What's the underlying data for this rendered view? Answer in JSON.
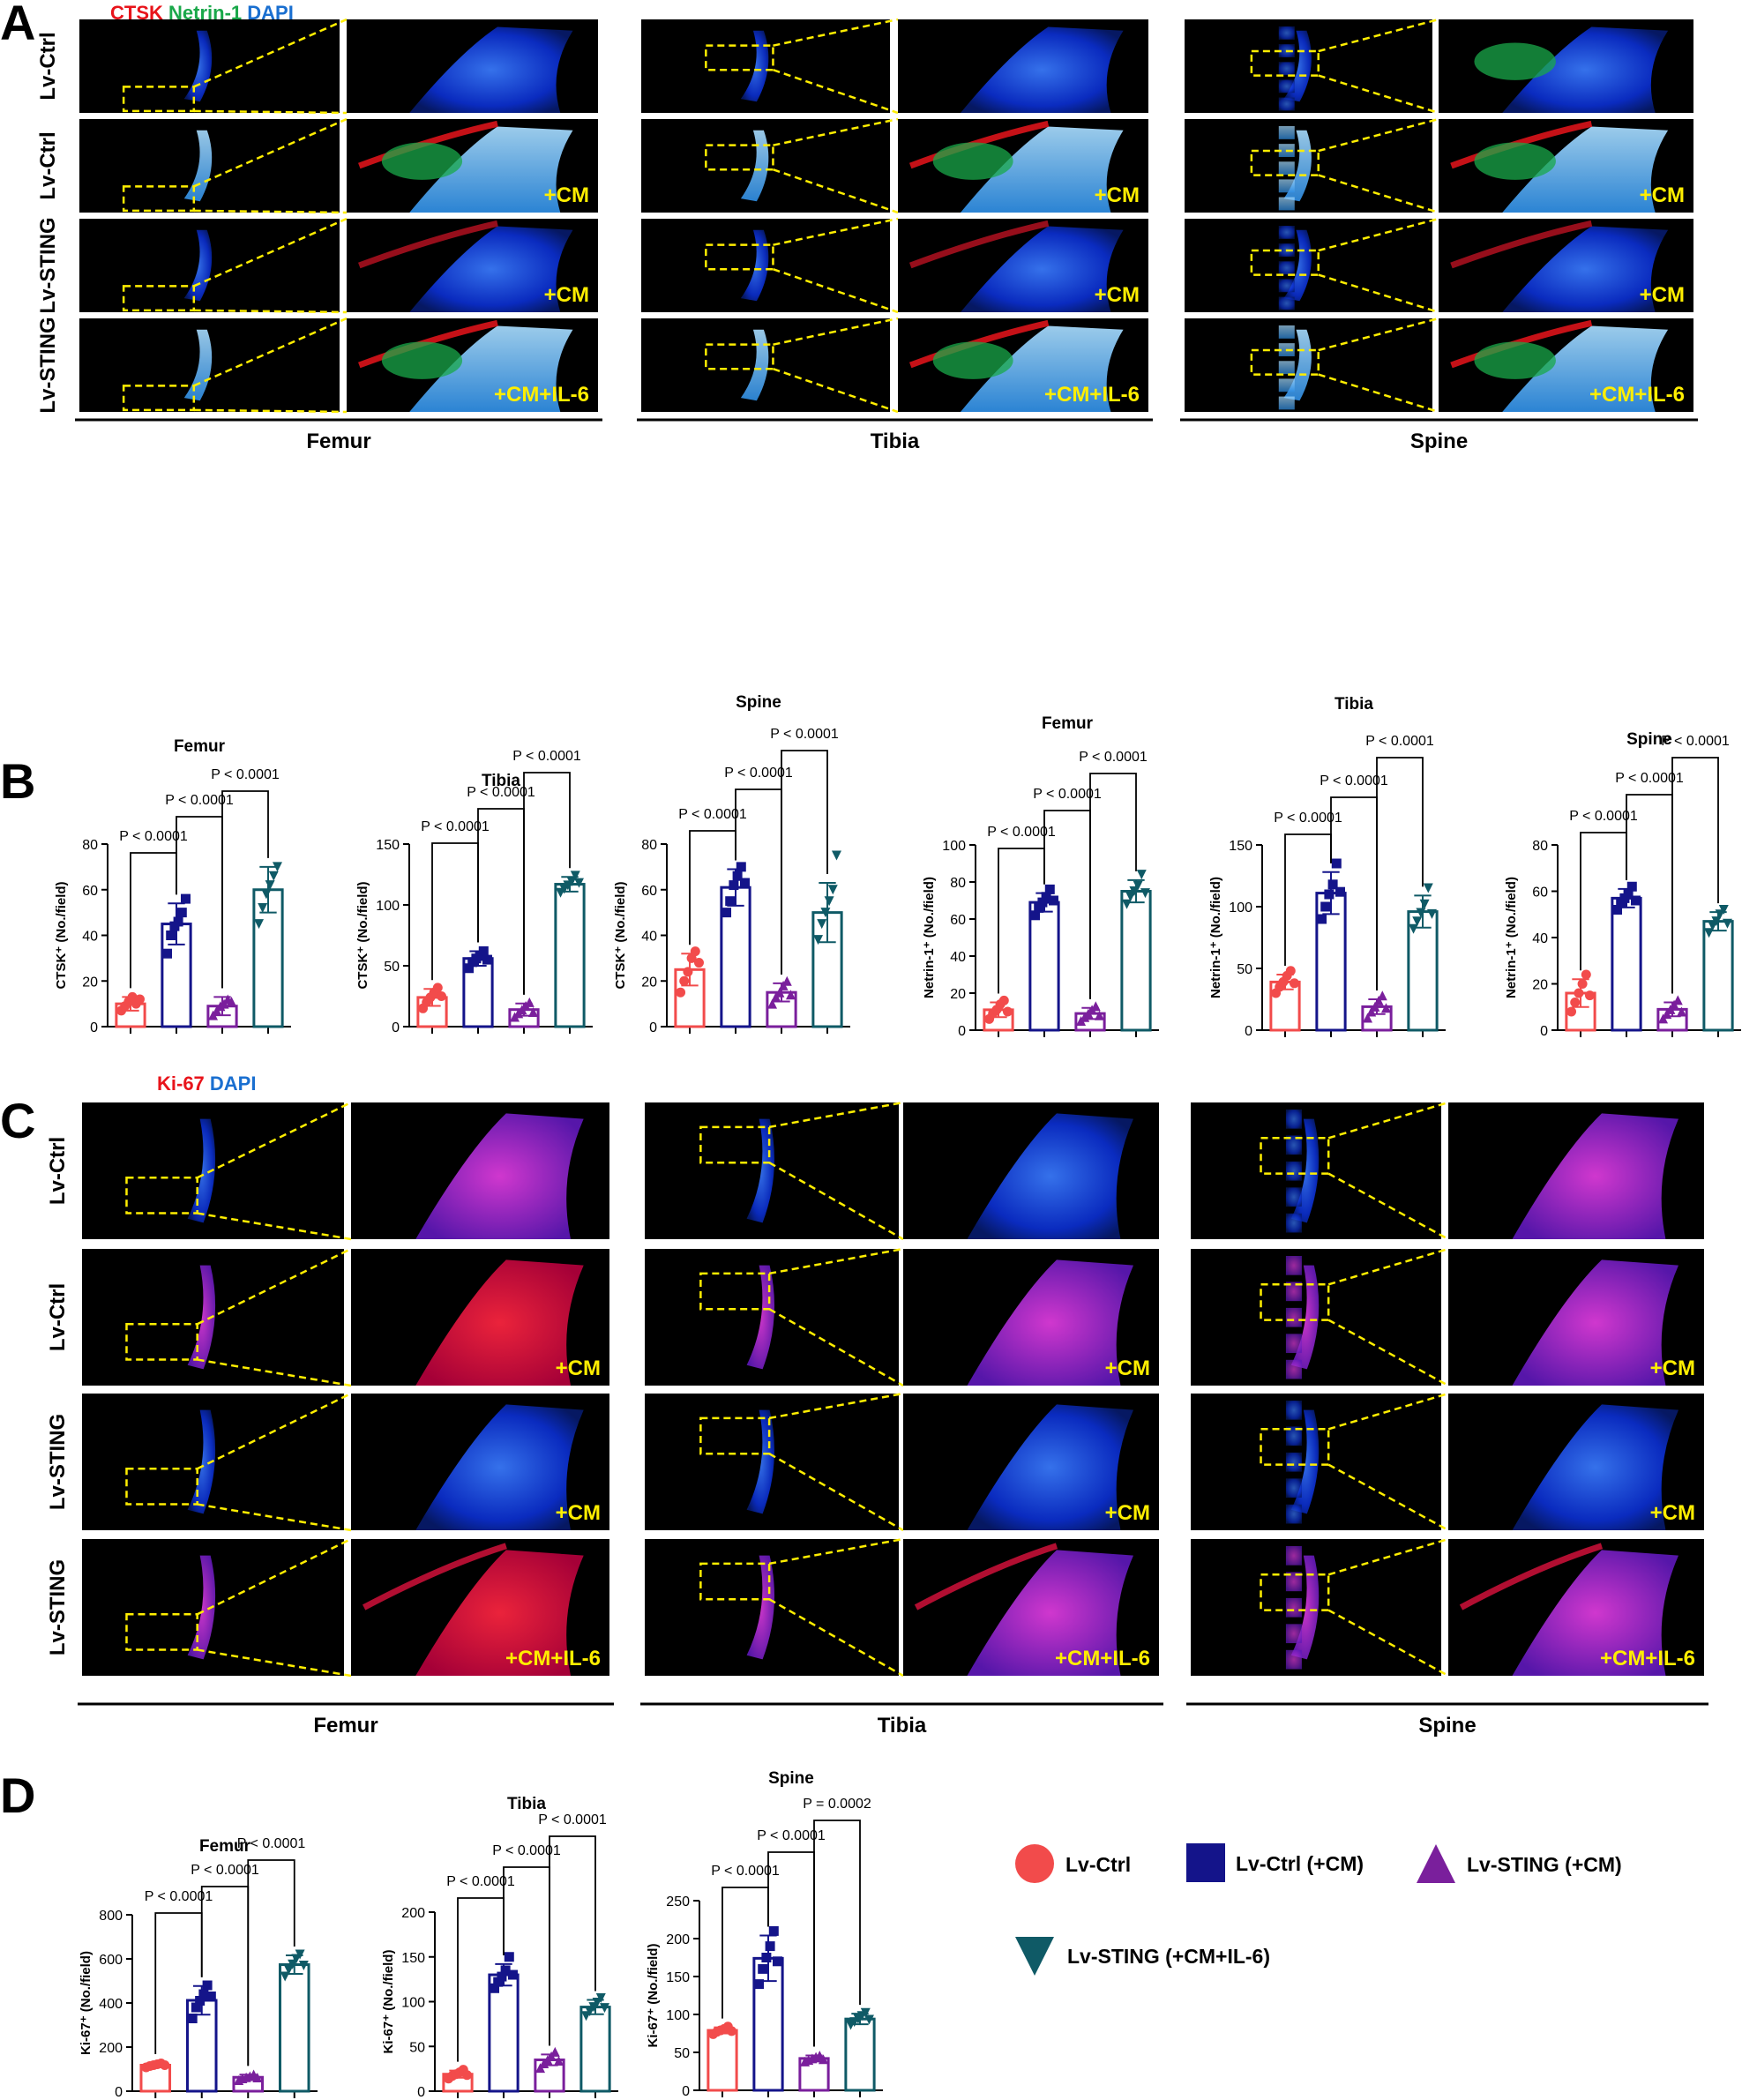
{
  "panel_letters": [
    "A",
    "B",
    "C",
    "D"
  ],
  "panel_a": {
    "stain": [
      {
        "text": "CTSK",
        "color": "#e8141b"
      },
      {
        "text": " Netrin-1",
        "color": "#1aa84a"
      },
      {
        "text": " DAPI",
        "color": "#1a6fd0"
      }
    ],
    "tissues": [
      "Femur",
      "Tibia",
      "Spine"
    ],
    "rows": [
      "Lv-Ctrl",
      "Lv-Ctrl",
      "Lv-STING",
      "Lv-STING"
    ],
    "treatments": [
      "",
      "+CM",
      "+CM",
      "+CM+IL-6"
    ]
  },
  "panel_c": {
    "stain": [
      {
        "text": "Ki-67",
        "color": "#e8141b"
      },
      {
        "text": " DAPI",
        "color": "#1a6fd0"
      }
    ],
    "tissues": [
      "Femur",
      "Tibia",
      "Spine"
    ],
    "rows": [
      "Lv-Ctrl",
      "Lv-Ctrl",
      "Lv-STING",
      "Lv-STING"
    ],
    "treatments": [
      "",
      "+CM",
      "+CM",
      "+CM+IL-6"
    ]
  },
  "legend": [
    {
      "label": "Lv-Ctrl",
      "shape": "circle",
      "color": "#f24b4b"
    },
    {
      "label": "Lv-Ctrl (+CM)",
      "shape": "square",
      "color": "#14148a"
    },
    {
      "label": "Lv-STING (+CM)",
      "shape": "triangle",
      "color": "#7a1f9c"
    },
    {
      "label": "Lv-STING (+CM+IL-6)",
      "shape": "triangle-down",
      "color": "#0f5a66"
    }
  ],
  "chart_data": [
    {
      "type": "bar",
      "title": "Femur",
      "ylabel": "CTSK⁺ (No./field)",
      "ylim": [
        0,
        80
      ],
      "ticks": [
        0,
        20,
        40,
        60,
        80
      ],
      "values": [
        10,
        45,
        9,
        60
      ],
      "errors": [
        3,
        9,
        4,
        10
      ],
      "points": [
        [
          7,
          9,
          11,
          13,
          10,
          12
        ],
        [
          32,
          40,
          44,
          46,
          50,
          56
        ],
        [
          5,
          7,
          9,
          10,
          12,
          11
        ],
        [
          45,
          52,
          58,
          62,
          66,
          70
        ]
      ],
      "pvalues": [
        "P < 0.0001",
        "P < 0.0001",
        "P < 0.0001"
      ]
    },
    {
      "type": "bar",
      "title": "Tibia",
      "ylabel": "CTSK⁺ (No./field)",
      "ylim": [
        0,
        150
      ],
      "ticks": [
        0,
        50,
        100,
        150
      ],
      "values": [
        24,
        56,
        14,
        117
      ],
      "errors": [
        7,
        6,
        5,
        6
      ],
      "points": [
        [
          15,
          20,
          24,
          28,
          32,
          25
        ],
        [
          48,
          53,
          56,
          58,
          62,
          55
        ],
        [
          8,
          11,
          14,
          17,
          20,
          12
        ],
        [
          110,
          113,
          116,
          119,
          124,
          118
        ]
      ],
      "pvalues": [
        "P < 0.0001",
        "P < 0.0001",
        "P < 0.0001"
      ]
    },
    {
      "type": "bar",
      "title": "Spine",
      "ylabel": "CTSK⁺ (No./field)",
      "ylim": [
        0,
        80
      ],
      "ticks": [
        0,
        20,
        40,
        60,
        80
      ],
      "values": [
        25,
        61,
        15,
        50
      ],
      "errors": [
        7,
        8,
        4,
        13
      ],
      "points": [
        [
          15,
          20,
          24,
          30,
          33,
          28
        ],
        [
          50,
          55,
          62,
          66,
          70,
          63
        ],
        [
          10,
          13,
          15,
          18,
          20,
          14
        ],
        [
          38,
          45,
          50,
          55,
          60,
          75
        ]
      ],
      "pvalues": [
        "P < 0.0001",
        "P < 0.0001",
        "P < 0.0001"
      ]
    },
    {
      "type": "bar",
      "title": "Femur",
      "ylabel": "Netrin-1⁺ (No./field)",
      "ylim": [
        0,
        100
      ],
      "ticks": [
        0,
        20,
        40,
        60,
        80,
        100
      ],
      "values": [
        11,
        69,
        9,
        75
      ],
      "errors": [
        4,
        5,
        3,
        6
      ],
      "points": [
        [
          6,
          9,
          11,
          14,
          16,
          10
        ],
        [
          62,
          66,
          69,
          72,
          76,
          70
        ],
        [
          5,
          7,
          9,
          11,
          13,
          8
        ],
        [
          68,
          72,
          75,
          78,
          84,
          74
        ]
      ],
      "pvalues": [
        "P < 0.0001",
        "P < 0.0001",
        "P < 0.0001"
      ]
    },
    {
      "type": "bar",
      "title": "Tibia",
      "ylabel": "Netrin-1⁺ (No./field)",
      "ylim": [
        0,
        150
      ],
      "ticks": [
        0,
        50,
        100,
        150
      ],
      "values": [
        39,
        111,
        19,
        96
      ],
      "errors": [
        6,
        17,
        6,
        13
      ],
      "points": [
        [
          30,
          35,
          39,
          44,
          48,
          38
        ],
        [
          90,
          100,
          110,
          118,
          135,
          112
        ],
        [
          10,
          15,
          19,
          24,
          28,
          18
        ],
        [
          82,
          88,
          95,
          102,
          115,
          94
        ]
      ],
      "pvalues": [
        "P < 0.0001",
        "P < 0.0001",
        "P < 0.0001"
      ]
    },
    {
      "type": "bar",
      "title": "Spine",
      "ylabel": "Netrin-1⁺ (No./field)",
      "ylim": [
        0,
        80
      ],
      "ticks": [
        0,
        20,
        40,
        60,
        80
      ],
      "values": [
        16,
        57,
        9,
        47
      ],
      "errors": [
        6,
        4,
        3,
        4
      ],
      "points": [
        [
          8,
          12,
          16,
          20,
          24,
          15
        ],
        [
          52,
          55,
          57,
          59,
          62,
          56
        ],
        [
          5,
          7,
          9,
          11,
          13,
          8
        ],
        [
          42,
          45,
          47,
          50,
          52,
          46
        ]
      ],
      "pvalues": [
        "P < 0.0001",
        "P < 0.0001",
        "P < 0.0001"
      ]
    },
    {
      "type": "bar",
      "title": "Femur",
      "ylabel": "Ki-67⁺ (No./field)",
      "ylim": [
        0,
        800
      ],
      "ticks": [
        0,
        200,
        400,
        600,
        800
      ],
      "values": [
        118,
        412,
        63,
        574
      ],
      "errors": [
        10,
        65,
        12,
        42
      ],
      "points": [
        [
          108,
          114,
          118,
          122,
          126,
          118
        ],
        [
          330,
          380,
          410,
          440,
          480,
          430
        ],
        [
          50,
          58,
          63,
          68,
          76,
          62
        ],
        [
          520,
          550,
          575,
          600,
          620,
          570
        ]
      ],
      "pvalues": [
        "P < 0.0001",
        "P < 0.0001",
        "P < 0.0001"
      ]
    },
    {
      "type": "bar",
      "title": "Tibia",
      "ylabel": "Ki-67⁺ (No./field)",
      "ylim": [
        0,
        200
      ],
      "ticks": [
        0,
        50,
        100,
        150,
        200
      ],
      "values": [
        19,
        130,
        35,
        94
      ],
      "errors": [
        4,
        12,
        6,
        8
      ],
      "points": [
        [
          14,
          17,
          19,
          21,
          24,
          18
        ],
        [
          115,
          122,
          128,
          135,
          150,
          130
        ],
        [
          26,
          31,
          35,
          39,
          44,
          34
        ],
        [
          84,
          89,
          94,
          99,
          104,
          93
        ]
      ],
      "pvalues": [
        "P < 0.0001",
        "P < 0.0001",
        "P < 0.0001"
      ]
    },
    {
      "type": "bar",
      "title": "Spine",
      "ylabel": "Ki-67⁺ (No./field)",
      "ylim": [
        0,
        250
      ],
      "ticks": [
        0,
        50,
        100,
        150,
        200,
        250
      ],
      "values": [
        79,
        174,
        42,
        94
      ],
      "errors": [
        4,
        30,
        4,
        7
      ],
      "points": [
        [
          74,
          77,
          79,
          81,
          84,
          78
        ],
        [
          140,
          160,
          175,
          190,
          210,
          170
        ],
        [
          38,
          40,
          42,
          44,
          46,
          41
        ],
        [
          86,
          90,
          94,
          98,
          102,
          93
        ]
      ],
      "pvalues": [
        "P < 0.0001",
        "P < 0.0001",
        "P = 0.0002"
      ]
    }
  ]
}
